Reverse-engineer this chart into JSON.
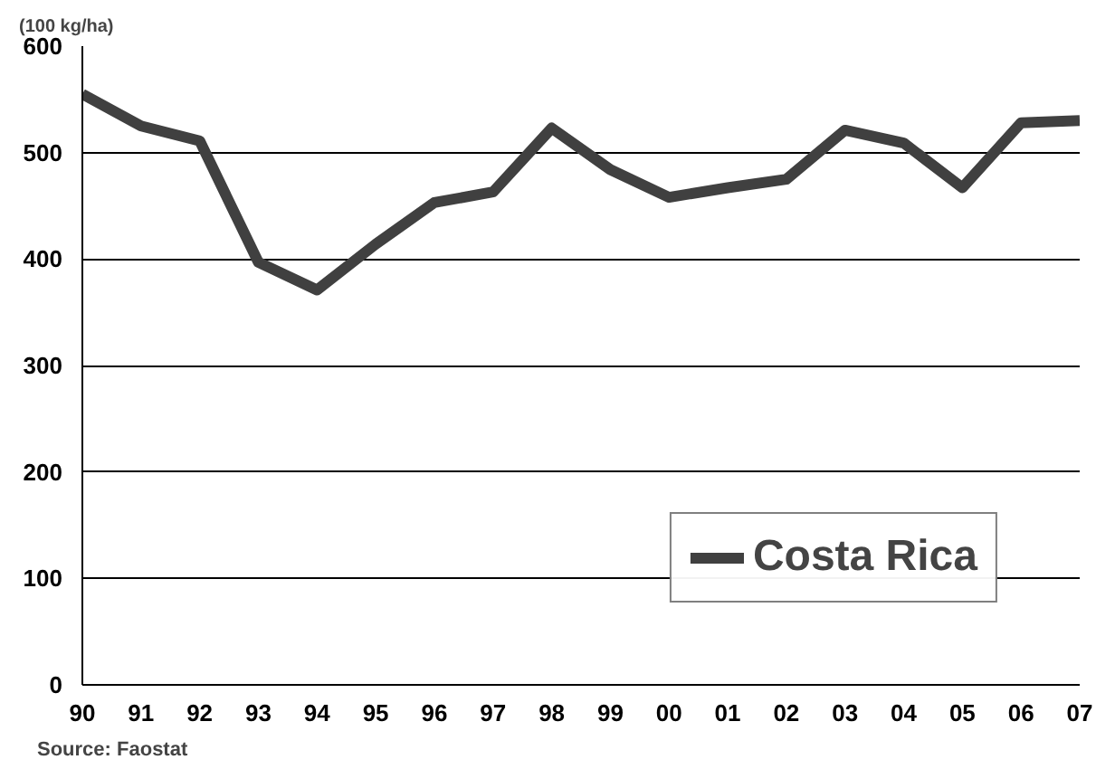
{
  "chart_data": {
    "type": "line",
    "ylabel": "(100 kg/ha)",
    "categories": [
      "90",
      "91",
      "92",
      "93",
      "94",
      "95",
      "96",
      "97",
      "98",
      "99",
      "00",
      "01",
      "02",
      "03",
      "04",
      "05",
      "06",
      "07"
    ],
    "series": [
      {
        "name": "Costa Rica",
        "color": "#404040",
        "values": [
          555,
          525,
          511,
          397,
          371,
          414,
          453,
          463,
          523,
          484,
          458,
          467,
          475,
          521,
          509,
          467,
          528,
          530
        ]
      }
    ],
    "ylim": [
      0,
      600
    ],
    "yticks": [
      0,
      100,
      200,
      300,
      400,
      500,
      600
    ],
    "grid": "y",
    "legend": "bottom right",
    "annotations": [
      "Source: Faostat"
    ]
  }
}
